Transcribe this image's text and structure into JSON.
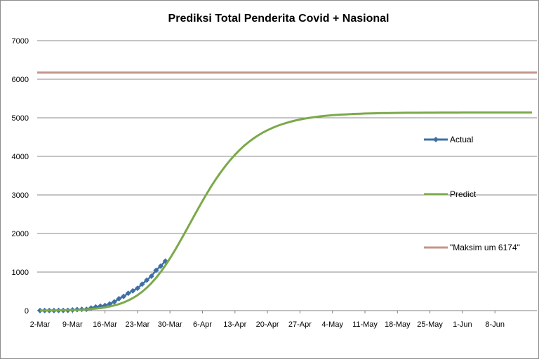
{
  "chart_data": {
    "type": "line",
    "title": "Prediksi Total Penderita Covid + Nasional",
    "xlabel": "",
    "ylabel": "",
    "ylim": [
      0,
      7000
    ],
    "yticks": [
      0,
      1000,
      2000,
      3000,
      4000,
      5000,
      6000,
      7000
    ],
    "xticks": [
      "2-Mar",
      "9-Mar",
      "16-Mar",
      "23-Mar",
      "30-Mar",
      "6-Apr",
      "13-Apr",
      "20-Apr",
      "27-Apr",
      "4-May",
      "11-May",
      "18-May",
      "25-May",
      "1-Jun",
      "8-Jun"
    ],
    "x_start": "2-Mar",
    "x_step_days": 1,
    "grid": "horizontal",
    "legend_position": "right",
    "series": [
      {
        "name": "Actual",
        "color": "#3f6fa5",
        "marker": "diamond",
        "values": [
          2,
          2,
          2,
          2,
          4,
          4,
          6,
          19,
          27,
          34,
          34,
          69,
          96,
          117,
          134,
          172,
          227,
          309,
          369,
          450,
          514,
          579,
          686,
          790,
          893,
          1046,
          1155,
          1285
        ]
      },
      {
        "name": "Predict",
        "color": "#7ba94a",
        "values": [
          2,
          3,
          4,
          5,
          7,
          9,
          12,
          15,
          19,
          25,
          32,
          41,
          52,
          66,
          84,
          106,
          134,
          168,
          211,
          263,
          325,
          400,
          489,
          592,
          712,
          849,
          1002,
          1171,
          1354,
          1551,
          1758,
          1973,
          2192,
          2412,
          2630,
          2842,
          3047,
          3243,
          3428,
          3600,
          3760,
          3907,
          4042,
          4165,
          4276,
          4375,
          4465,
          4545,
          4616,
          4679,
          4735,
          4784,
          4828,
          4866,
          4900,
          4929,
          4955,
          4978,
          4998,
          5016,
          5031,
          5045,
          5056,
          5067,
          5076,
          5084,
          5090,
          5096,
          5102,
          5106,
          5110,
          5114,
          5117,
          5120,
          5122,
          5124,
          5126,
          5128,
          5129,
          5130,
          5131,
          5132,
          5133,
          5134,
          5135,
          5135,
          5136,
          5136,
          5137,
          5137,
          5137,
          5138,
          5138,
          5138,
          5138,
          5138,
          5139,
          5139,
          5139,
          5139,
          5139,
          5139,
          5139,
          5139,
          5139,
          5139,
          5139
        ]
      },
      {
        "name": "\"Maksim um 6174\"",
        "color": "#c4958a",
        "constant": 6174
      }
    ]
  }
}
